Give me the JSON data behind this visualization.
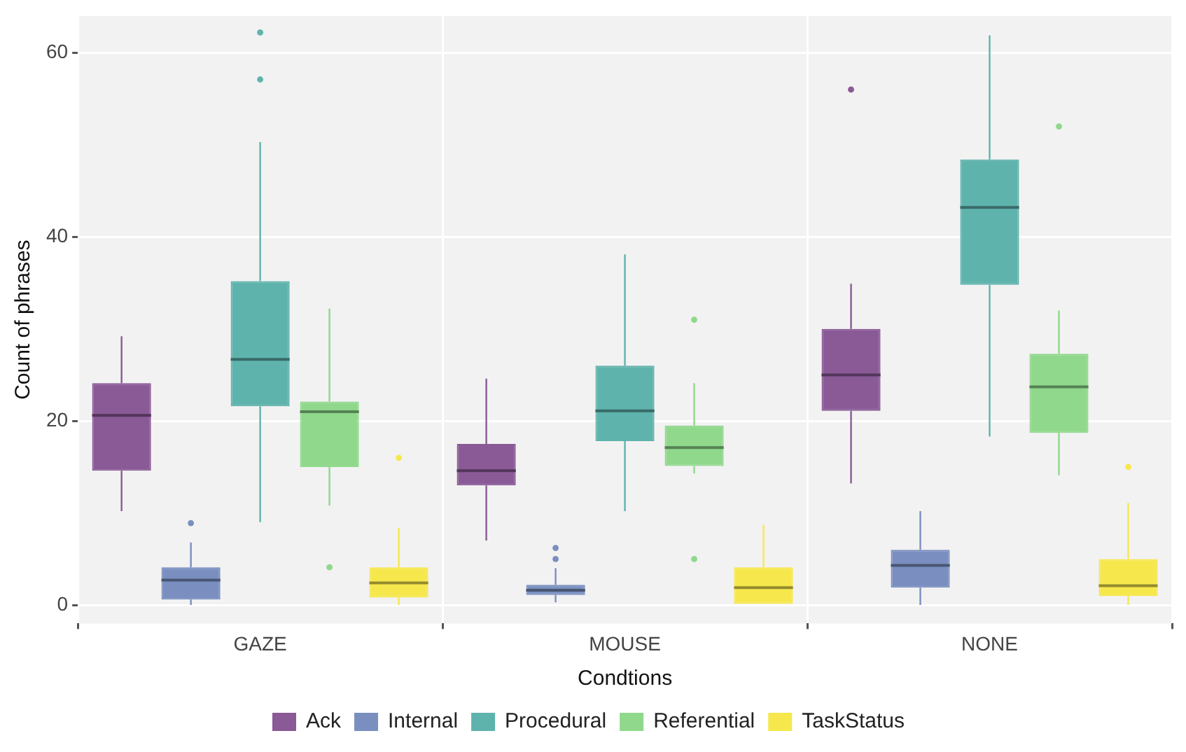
{
  "chart_data": {
    "type": "box",
    "xlabel": "Condtions",
    "ylabel": "Count of phrases",
    "categories": [
      "GAZE",
      "MOUSE",
      "NONE"
    ],
    "ylim": [
      -2,
      64
    ],
    "yticks": [
      0,
      20,
      40,
      60
    ],
    "grid": true,
    "legend": "bottom",
    "series": [
      {
        "name": "Ack",
        "color": "#8a5a97",
        "boxes": [
          {
            "low": 10.2,
            "q1": 14.6,
            "median": 20.6,
            "q3": 24.1,
            "high": 29.2
          },
          {
            "low": 7,
            "q1": 13,
            "median": 14.6,
            "q3": 17.5,
            "high": 24.6
          },
          {
            "low": 13.2,
            "q1": 21.1,
            "median": 25,
            "q3": 30,
            "high": 34.9,
            "outliers": [
              56
            ]
          }
        ]
      },
      {
        "name": "Internal",
        "color": "#7a8fc0",
        "boxes": [
          {
            "low": 0,
            "q1": 0.6,
            "median": 2.7,
            "q3": 4.1,
            "high": 6.8,
            "outliers": [
              8.9
            ]
          },
          {
            "low": 0.3,
            "q1": 1.1,
            "median": 1.6,
            "q3": 2.2,
            "high": 4,
            "outliers": [
              5,
              6.2
            ]
          },
          {
            "low": 0,
            "q1": 1.9,
            "median": 4.3,
            "q3": 6,
            "high": 10.2
          }
        ]
      },
      {
        "name": "Procedural",
        "color": "#5fb3ad",
        "boxes": [
          {
            "low": 9,
            "q1": 21.6,
            "median": 26.7,
            "q3": 35.2,
            "high": 50.3,
            "outliers": [
              57.1,
              62.2
            ]
          },
          {
            "low": 10.2,
            "q1": 17.8,
            "median": 21.1,
            "q3": 26,
            "high": 38.1
          },
          {
            "low": 18.3,
            "q1": 34.8,
            "median": 43.2,
            "q3": 48.4,
            "high": 61.9
          }
        ]
      },
      {
        "name": "Referential",
        "color": "#90d88c",
        "boxes": [
          {
            "low": 10.8,
            "q1": 15,
            "median": 21,
            "q3": 22.1,
            "high": 32.2,
            "outliers": [
              4.1
            ]
          },
          {
            "low": 14.3,
            "q1": 15.1,
            "median": 17.1,
            "q3": 19.5,
            "high": 24.1,
            "outliers": [
              5,
              31
            ]
          },
          {
            "low": 14.1,
            "q1": 18.7,
            "median": 23.7,
            "q3": 27.3,
            "high": 32,
            "outliers": [
              52
            ]
          }
        ]
      },
      {
        "name": "TaskStatus",
        "color": "#f6e84c",
        "boxes": [
          {
            "low": 0,
            "q1": 0.8,
            "median": 2.4,
            "q3": 4.1,
            "high": 8.4,
            "outliers": [
              16
            ]
          },
          {
            "low": 0,
            "q1": 0,
            "median": 1.9,
            "q3": 4.1,
            "high": 8.7
          },
          {
            "low": 0,
            "q1": 1,
            "median": 2.1,
            "q3": 5,
            "high": 11.1,
            "outliers": [
              15
            ]
          }
        ]
      }
    ]
  }
}
